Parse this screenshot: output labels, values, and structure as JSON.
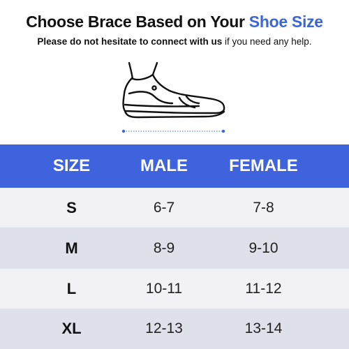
{
  "header": {
    "title_main": "Choose Brace Based on Your ",
    "title_highlight": "Shoe Size",
    "subtitle_bold": "Please do not hesitate to connect with us",
    "subtitle_rest": " if you need any help."
  },
  "colors": {
    "accent": "#3a66d8",
    "table_header": "#3e63dd",
    "row_light": "#f2f2f6",
    "row_dark": "#dfe1ea"
  },
  "illustration": {
    "icon": "shoe-icon"
  },
  "table": {
    "columns": [
      "SIZE",
      "MALE",
      "FEMALE"
    ],
    "rows": [
      {
        "size": "S",
        "male": "6-7",
        "female": "7-8"
      },
      {
        "size": "M",
        "male": "8-9",
        "female": "9-10"
      },
      {
        "size": "L",
        "male": "10-11",
        "female": "11-12"
      },
      {
        "size": "XL",
        "male": "12-13",
        "female": "13-14"
      }
    ]
  }
}
